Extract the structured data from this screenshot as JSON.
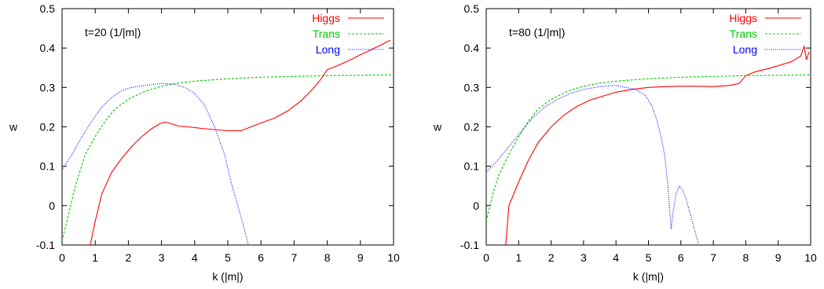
{
  "chart_data": [
    {
      "type": "line",
      "annotation": "t=20 (1/|m|)",
      "xlabel": "k (|m|)",
      "ylabel": "w",
      "xlim": [
        0,
        10
      ],
      "ylim": [
        -0.1,
        0.5
      ],
      "xticks": [
        "0",
        "1",
        "2",
        "3",
        "4",
        "5",
        "6",
        "7",
        "8",
        "9",
        "10"
      ],
      "yticks": [
        "-0.1",
        "0",
        "0.1",
        "0.2",
        "0.3",
        "0.4",
        "0.5"
      ],
      "legend_position": "top-right",
      "series": [
        {
          "name": "Higgs",
          "color": "#ff0000",
          "dash": "solid",
          "points": [
            [
              0.85,
              -0.1
            ],
            [
              1.0,
              -0.04
            ],
            [
              1.2,
              0.03
            ],
            [
              1.5,
              0.085
            ],
            [
              1.8,
              0.12
            ],
            [
              2.1,
              0.15
            ],
            [
              2.4,
              0.175
            ],
            [
              2.7,
              0.195
            ],
            [
              2.95,
              0.208
            ],
            [
              3.1,
              0.212
            ],
            [
              3.3,
              0.208
            ],
            [
              3.5,
              0.202
            ],
            [
              3.8,
              0.2
            ],
            [
              4.2,
              0.196
            ],
            [
              4.6,
              0.193
            ],
            [
              5.0,
              0.19
            ],
            [
              5.4,
              0.19
            ],
            [
              5.7,
              0.2
            ],
            [
              6.0,
              0.21
            ],
            [
              6.4,
              0.222
            ],
            [
              6.8,
              0.24
            ],
            [
              7.2,
              0.265
            ],
            [
              7.5,
              0.29
            ],
            [
              7.8,
              0.32
            ],
            [
              8.0,
              0.345
            ],
            [
              8.3,
              0.355
            ],
            [
              8.7,
              0.37
            ],
            [
              9.0,
              0.383
            ],
            [
              9.3,
              0.395
            ],
            [
              9.6,
              0.407
            ],
            [
              9.9,
              0.42
            ]
          ]
        },
        {
          "name": "Trans",
          "color": "#00cc00",
          "dash": "dashed",
          "points": [
            [
              0.0,
              -0.09
            ],
            [
              0.2,
              -0.02
            ],
            [
              0.4,
              0.05
            ],
            [
              0.7,
              0.13
            ],
            [
              1.0,
              0.175
            ],
            [
              1.3,
              0.215
            ],
            [
              1.6,
              0.245
            ],
            [
              2.0,
              0.27
            ],
            [
              2.5,
              0.29
            ],
            [
              3.0,
              0.303
            ],
            [
              3.5,
              0.311
            ],
            [
              4.0,
              0.316
            ],
            [
              5.0,
              0.322
            ],
            [
              6.0,
              0.326
            ],
            [
              7.0,
              0.328
            ],
            [
              8.0,
              0.33
            ],
            [
              9.0,
              0.331
            ],
            [
              10.0,
              0.332
            ]
          ]
        },
        {
          "name": "Long",
          "color": "#0000ff",
          "dash": "dotted",
          "points": [
            [
              0.0,
              0.09
            ],
            [
              0.3,
              0.13
            ],
            [
              0.6,
              0.175
            ],
            [
              0.9,
              0.215
            ],
            [
              1.2,
              0.25
            ],
            [
              1.5,
              0.275
            ],
            [
              1.8,
              0.292
            ],
            [
              2.1,
              0.3
            ],
            [
              2.5,
              0.305
            ],
            [
              3.0,
              0.31
            ],
            [
              3.4,
              0.308
            ],
            [
              3.7,
              0.3
            ],
            [
              4.0,
              0.285
            ],
            [
              4.3,
              0.255
            ],
            [
              4.6,
              0.2
            ],
            [
              4.9,
              0.13
            ],
            [
              5.1,
              0.06
            ],
            [
              5.3,
              0.0
            ],
            [
              5.5,
              -0.06
            ],
            [
              5.62,
              -0.1
            ]
          ]
        }
      ]
    },
    {
      "type": "line",
      "annotation": "t=80 (1/|m|)",
      "xlabel": "k (|m|)",
      "ylabel": "w",
      "xlim": [
        0,
        10
      ],
      "ylim": [
        -0.1,
        0.5
      ],
      "xticks": [
        "0",
        "1",
        "2",
        "3",
        "4",
        "5",
        "6",
        "7",
        "8",
        "9",
        "10"
      ],
      "yticks": [
        "-0.1",
        "0",
        "0.1",
        "0.2",
        "0.3",
        "0.4",
        "0.5"
      ],
      "legend_position": "top-right",
      "series": [
        {
          "name": "Higgs",
          "color": "#ff0000",
          "dash": "solid",
          "points": [
            [
              0.6,
              -0.1
            ],
            [
              0.7,
              0.0
            ],
            [
              1.0,
              0.06
            ],
            [
              1.3,
              0.115
            ],
            [
              1.6,
              0.16
            ],
            [
              2.0,
              0.2
            ],
            [
              2.4,
              0.23
            ],
            [
              2.8,
              0.252
            ],
            [
              3.2,
              0.268
            ],
            [
              3.6,
              0.278
            ],
            [
              4.0,
              0.288
            ],
            [
              4.5,
              0.295
            ],
            [
              5.0,
              0.3
            ],
            [
              5.5,
              0.302
            ],
            [
              6.0,
              0.303
            ],
            [
              6.5,
              0.303
            ],
            [
              7.0,
              0.302
            ],
            [
              7.5,
              0.305
            ],
            [
              7.8,
              0.31
            ],
            [
              8.0,
              0.33
            ],
            [
              8.3,
              0.34
            ],
            [
              8.7,
              0.348
            ],
            [
              9.0,
              0.355
            ],
            [
              9.4,
              0.365
            ],
            [
              9.7,
              0.38
            ],
            [
              9.8,
              0.405
            ],
            [
              9.87,
              0.37
            ],
            [
              9.95,
              0.39
            ]
          ]
        },
        {
          "name": "Trans",
          "color": "#00cc00",
          "dash": "dashed",
          "points": [
            [
              0.0,
              -0.04
            ],
            [
              0.2,
              0.03
            ],
            [
              0.4,
              0.08
            ],
            [
              0.7,
              0.13
            ],
            [
              1.0,
              0.175
            ],
            [
              1.3,
              0.215
            ],
            [
              1.6,
              0.245
            ],
            [
              2.0,
              0.27
            ],
            [
              2.5,
              0.29
            ],
            [
              3.0,
              0.303
            ],
            [
              3.5,
              0.311
            ],
            [
              4.0,
              0.316
            ],
            [
              5.0,
              0.322
            ],
            [
              6.0,
              0.326
            ],
            [
              7.0,
              0.328
            ],
            [
              8.0,
              0.33
            ],
            [
              9.0,
              0.331
            ],
            [
              10.0,
              0.332
            ]
          ]
        },
        {
          "name": "Long",
          "color": "#0000ff",
          "dash": "dotted",
          "points": [
            [
              0.0,
              0.085
            ],
            [
              0.3,
              0.11
            ],
            [
              0.6,
              0.14
            ],
            [
              1.0,
              0.18
            ],
            [
              1.4,
              0.22
            ],
            [
              1.8,
              0.25
            ],
            [
              2.2,
              0.27
            ],
            [
              2.6,
              0.285
            ],
            [
              3.0,
              0.295
            ],
            [
              3.5,
              0.302
            ],
            [
              4.0,
              0.305
            ],
            [
              4.3,
              0.3
            ],
            [
              4.6,
              0.295
            ],
            [
              4.9,
              0.28
            ],
            [
              5.1,
              0.255
            ],
            [
              5.25,
              0.22
            ],
            [
              5.4,
              0.17
            ],
            [
              5.5,
              0.13
            ],
            [
              5.6,
              0.05
            ],
            [
              5.7,
              -0.06
            ],
            [
              5.75,
              -0.02
            ],
            [
              5.85,
              0.03
            ],
            [
              5.95,
              0.05
            ],
            [
              6.05,
              0.04
            ],
            [
              6.15,
              0.02
            ],
            [
              6.25,
              -0.01
            ],
            [
              6.35,
              -0.04
            ],
            [
              6.45,
              -0.07
            ],
            [
              6.55,
              -0.1
            ]
          ]
        }
      ]
    }
  ]
}
